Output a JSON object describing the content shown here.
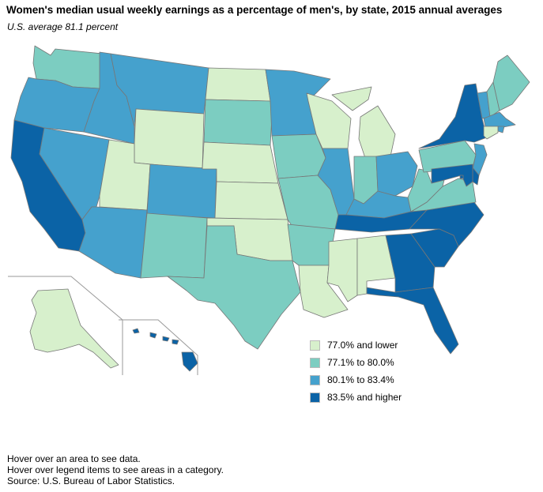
{
  "title": "Women's median usual weekly earnings as a percentage of men's, by state, 2015 annual averages",
  "subtitle": "U.S. average 81.1 percent",
  "legend": [
    {
      "label": "77.0% and lower",
      "color": "#d7f0cc"
    },
    {
      "label": "77.1% to 80.0%",
      "color": "#7ccdc1"
    },
    {
      "label": "80.1% to 83.4%",
      "color": "#45a1cd"
    },
    {
      "label": "83.5% and higher",
      "color": "#0b63a6"
    }
  ],
  "states": [
    {
      "abbr": "WA",
      "category": 1
    },
    {
      "abbr": "OR",
      "category": 2
    },
    {
      "abbr": "CA",
      "category": 3
    },
    {
      "abbr": "ID",
      "category": 2
    },
    {
      "abbr": "NV",
      "category": 2
    },
    {
      "abbr": "MT",
      "category": 2
    },
    {
      "abbr": "WY",
      "category": 0
    },
    {
      "abbr": "UT",
      "category": 0
    },
    {
      "abbr": "AZ",
      "category": 2
    },
    {
      "abbr": "CO",
      "category": 2
    },
    {
      "abbr": "NM",
      "category": 1
    },
    {
      "abbr": "ND",
      "category": 0
    },
    {
      "abbr": "SD",
      "category": 1
    },
    {
      "abbr": "NE",
      "category": 0
    },
    {
      "abbr": "KS",
      "category": 0
    },
    {
      "abbr": "OK",
      "category": 0
    },
    {
      "abbr": "TX",
      "category": 1
    },
    {
      "abbr": "MN",
      "category": 2
    },
    {
      "abbr": "IA",
      "category": 1
    },
    {
      "abbr": "MO",
      "category": 1
    },
    {
      "abbr": "AR",
      "category": 1
    },
    {
      "abbr": "LA",
      "category": 0
    },
    {
      "abbr": "WI",
      "category": 0
    },
    {
      "abbr": "IL",
      "category": 2
    },
    {
      "abbr": "MI",
      "category": 0
    },
    {
      "abbr": "IN",
      "category": 1
    },
    {
      "abbr": "OH",
      "category": 2
    },
    {
      "abbr": "KY",
      "category": 2
    },
    {
      "abbr": "TN",
      "category": 3
    },
    {
      "abbr": "MS",
      "category": 0
    },
    {
      "abbr": "AL",
      "category": 0
    },
    {
      "abbr": "GA",
      "category": 3
    },
    {
      "abbr": "FL",
      "category": 3
    },
    {
      "abbr": "SC",
      "category": 3
    },
    {
      "abbr": "NC",
      "category": 3
    },
    {
      "abbr": "VA",
      "category": 1
    },
    {
      "abbr": "WV",
      "category": 1
    },
    {
      "abbr": "PA",
      "category": 1
    },
    {
      "abbr": "NY",
      "category": 3
    },
    {
      "abbr": "VT",
      "category": 2
    },
    {
      "abbr": "NH",
      "category": 1
    },
    {
      "abbr": "ME",
      "category": 1
    },
    {
      "abbr": "MA",
      "category": 2
    },
    {
      "abbr": "RI",
      "category": 2
    },
    {
      "abbr": "CT",
      "category": 0
    },
    {
      "abbr": "NJ",
      "category": 2
    },
    {
      "abbr": "DE",
      "category": 3
    },
    {
      "abbr": "MD",
      "category": 3
    },
    {
      "abbr": "DC",
      "category": 3
    },
    {
      "abbr": "AK",
      "category": 0
    },
    {
      "abbr": "HI",
      "category": 3
    }
  ],
  "notes": {
    "line1": "Hover over an area to see data.",
    "line2": "Hover over legend items to see areas in a category.",
    "line3": "Source: U.S. Bureau of Labor Statistics."
  }
}
